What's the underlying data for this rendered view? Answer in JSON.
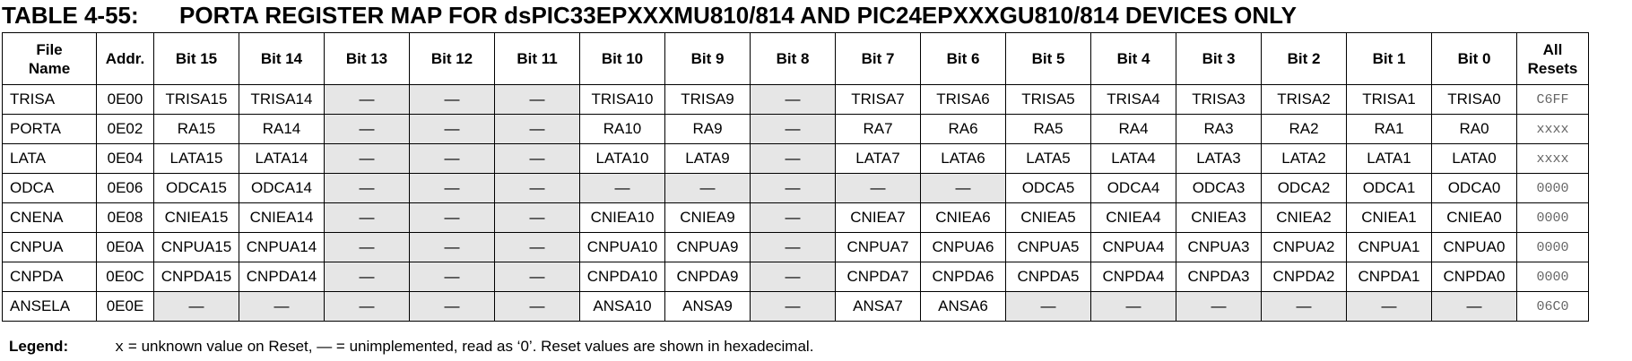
{
  "title": {
    "number": "TABLE 4-55:",
    "text": "PORTA REGISTER MAP FOR dsPIC33EPXXXMU810/814 AND PIC24EPXXXGU810/814 DEVICES ONLY"
  },
  "table": {
    "headers": [
      [
        "File",
        "Name"
      ],
      [
        "Addr."
      ],
      [
        "Bit 15"
      ],
      [
        "Bit 14"
      ],
      [
        "Bit 13"
      ],
      [
        "Bit 12"
      ],
      [
        "Bit 11"
      ],
      [
        "Bit 10"
      ],
      [
        "Bit 9"
      ],
      [
        "Bit 8"
      ],
      [
        "Bit 7"
      ],
      [
        "Bit 6"
      ],
      [
        "Bit 5"
      ],
      [
        "Bit 4"
      ],
      [
        "Bit 3"
      ],
      [
        "Bit 2"
      ],
      [
        "Bit 1"
      ],
      [
        "Bit 0"
      ],
      [
        "All",
        "Resets"
      ]
    ],
    "rows": [
      [
        "TRISA",
        "0E00",
        "TRISA15",
        "TRISA14",
        "—",
        "—",
        "—",
        "TRISA10",
        "TRISA9",
        "—",
        "TRISA7",
        "TRISA6",
        "TRISA5",
        "TRISA4",
        "TRISA3",
        "TRISA2",
        "TRISA1",
        "TRISA0",
        "C6FF"
      ],
      [
        "PORTA",
        "0E02",
        "RA15",
        "RA14",
        "—",
        "—",
        "—",
        "RA10",
        "RA9",
        "—",
        "RA7",
        "RA6",
        "RA5",
        "RA4",
        "RA3",
        "RA2",
        "RA1",
        "RA0",
        "xxxx"
      ],
      [
        "LATA",
        "0E04",
        "LATA15",
        "LATA14",
        "—",
        "—",
        "—",
        "LATA10",
        "LATA9",
        "—",
        "LATA7",
        "LATA6",
        "LATA5",
        "LATA4",
        "LATA3",
        "LATA2",
        "LATA1",
        "LATA0",
        "xxxx"
      ],
      [
        "ODCA",
        "0E06",
        "ODCA15",
        "ODCA14",
        "—",
        "—",
        "—",
        "—",
        "—",
        "—",
        "—",
        "—",
        "ODCA5",
        "ODCA4",
        "ODCA3",
        "ODCA2",
        "ODCA1",
        "ODCA0",
        "0000"
      ],
      [
        "CNENA",
        "0E08",
        "CNIEA15",
        "CNIEA14",
        "—",
        "—",
        "—",
        "CNIEA10",
        "CNIEA9",
        "—",
        "CNIEA7",
        "CNIEA6",
        "CNIEA5",
        "CNIEA4",
        "CNIEA3",
        "CNIEA2",
        "CNIEA1",
        "CNIEA0",
        "0000"
      ],
      [
        "CNPUA",
        "0E0A",
        "CNPUA15",
        "CNPUA14",
        "—",
        "—",
        "—",
        "CNPUA10",
        "CNPUA9",
        "—",
        "CNPUA7",
        "CNPUA6",
        "CNPUA5",
        "CNPUA4",
        "CNPUA3",
        "CNPUA2",
        "CNPUA1",
        "CNPUA0",
        "0000"
      ],
      [
        "CNPDA",
        "0E0C",
        "CNPDA15",
        "CNPDA14",
        "—",
        "—",
        "—",
        "CNPDA10",
        "CNPDA9",
        "—",
        "CNPDA7",
        "CNPDA6",
        "CNPDA5",
        "CNPDA4",
        "CNPDA3",
        "CNPDA2",
        "CNPDA1",
        "CNPDA0",
        "0000"
      ],
      [
        "ANSELA",
        "0E0E",
        "—",
        "—",
        "—",
        "—",
        "—",
        "ANSA10",
        "ANSA9",
        "—",
        "ANSA7",
        "ANSA6",
        "—",
        "—",
        "—",
        "—",
        "—",
        "—",
        "06C0"
      ]
    ]
  },
  "legend": {
    "label": "Legend:",
    "symbol": "x",
    "text": " = unknown value on Reset, — = unimplemented, read as ‘0’. Reset values are shown in hexadecimal."
  },
  "colors": {
    "unimplemented_fill": "#e6e6e6",
    "reset_text": "#666666"
  }
}
